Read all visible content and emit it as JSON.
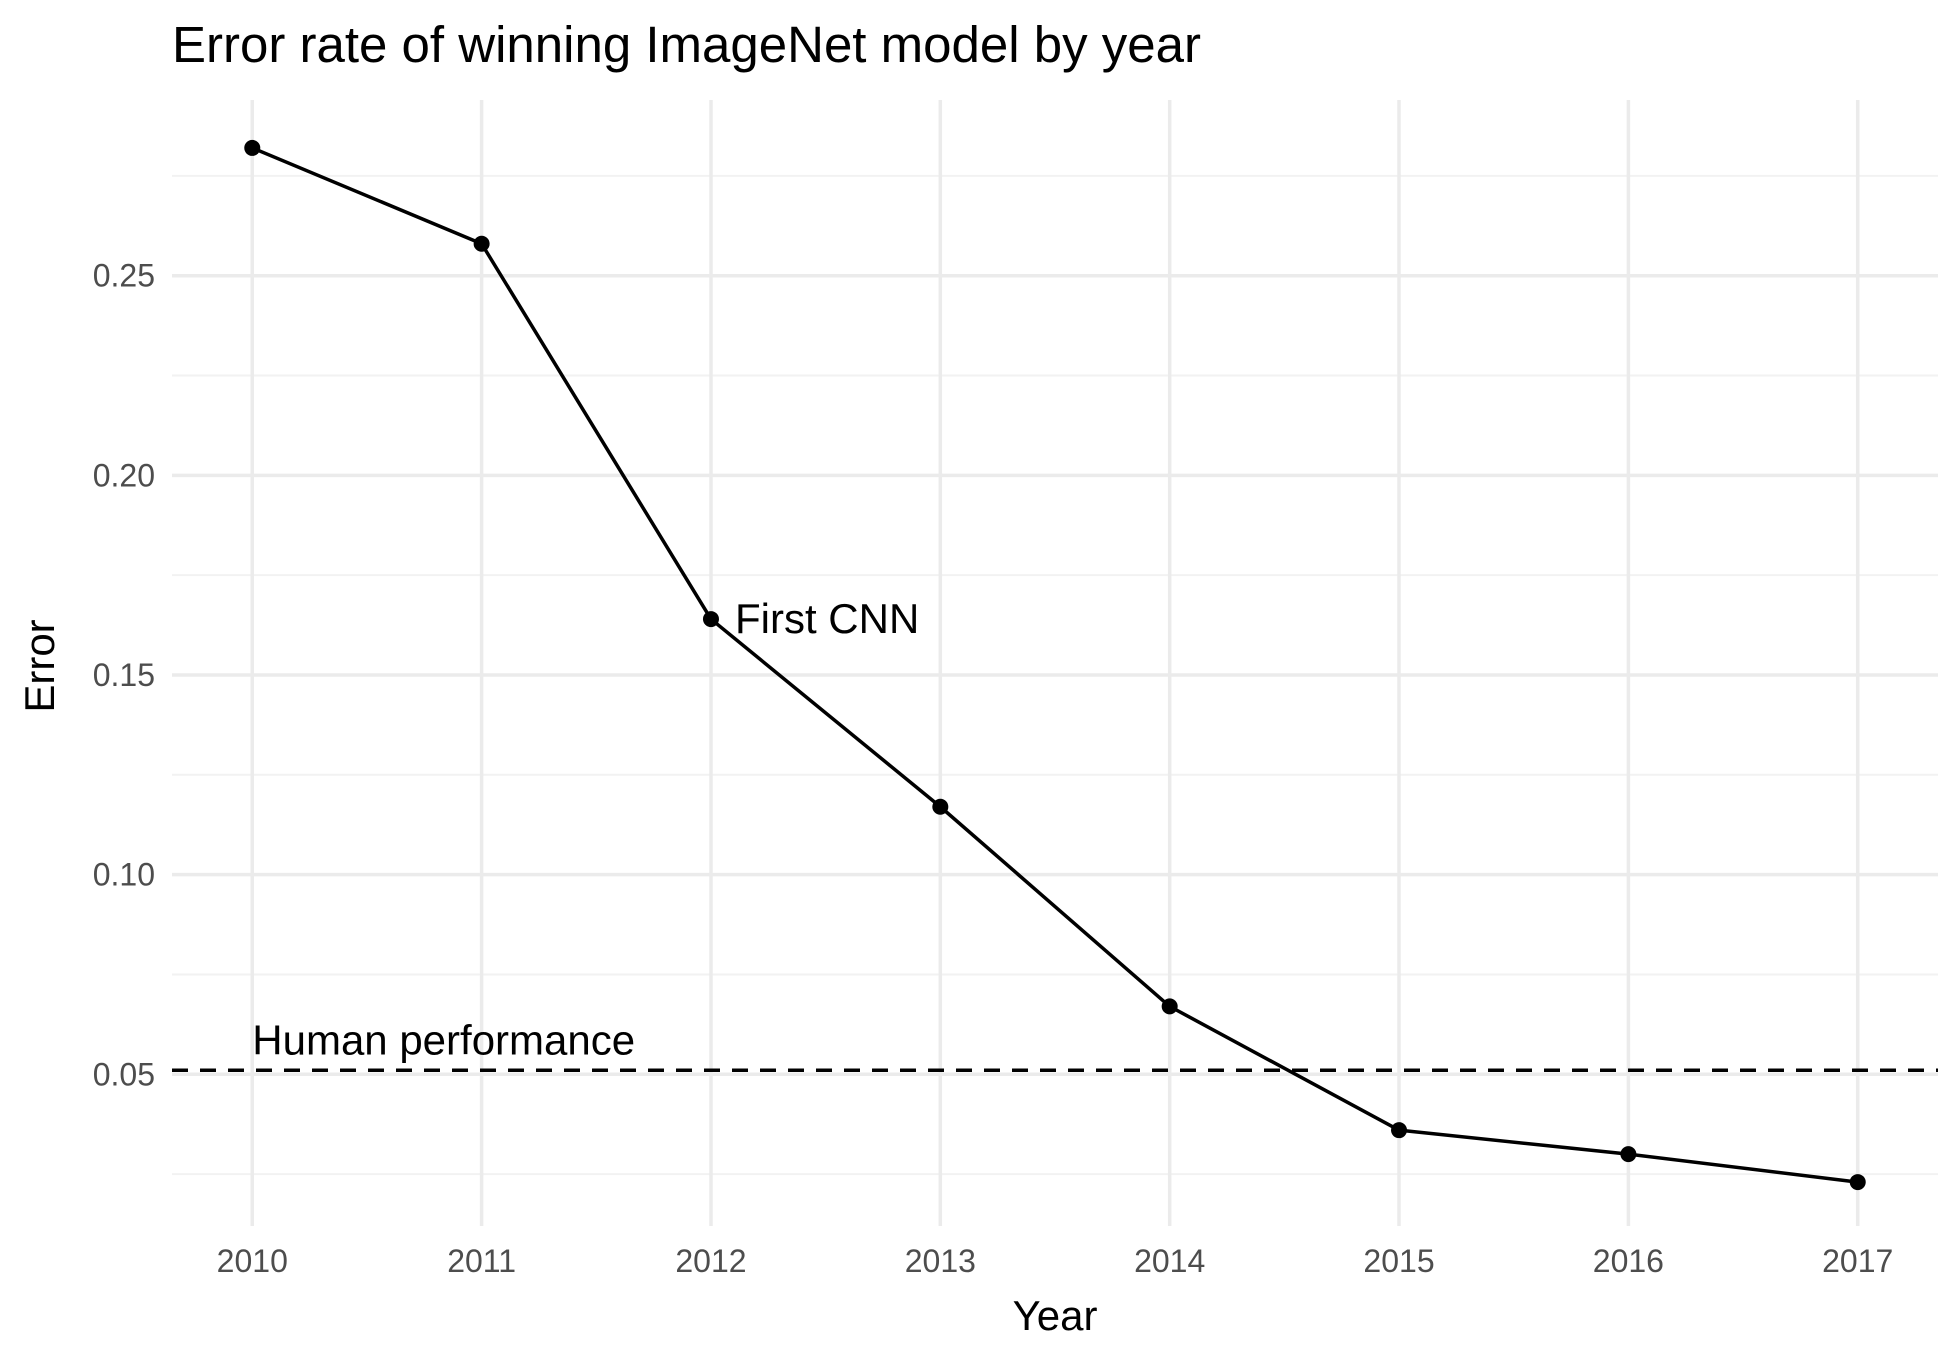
{
  "chart_data": {
    "type": "line",
    "title": "Error rate of winning ImageNet model by year",
    "xlabel": "Year",
    "ylabel": "Error",
    "x": [
      2010,
      2011,
      2012,
      2013,
      2014,
      2015,
      2016,
      2017
    ],
    "series": [
      {
        "values": [
          0.282,
          0.258,
          0.164,
          0.117,
          0.067,
          0.036,
          0.03,
          0.023
        ]
      }
    ],
    "xlim": [
      2009.65,
      2017.35
    ],
    "ylim": [
      0.012,
      0.294
    ],
    "x_ticks": [
      "2010",
      "2011",
      "2012",
      "2013",
      "2014",
      "2015",
      "2016",
      "2017"
    ],
    "y_ticks": [
      "0.05",
      "0.10",
      "0.15",
      "0.20",
      "0.25"
    ],
    "y_tick_values": [
      0.05,
      0.1,
      0.15,
      0.2,
      0.25
    ],
    "y_minor_values": [
      0.025,
      0.075,
      0.125,
      0.175,
      0.225,
      0.275
    ],
    "reference_line": {
      "y": 0.051,
      "style": "dashed",
      "label": "Human performance",
      "label_x": 2010
    },
    "point_annotations": [
      {
        "x": 2012,
        "y": 0.164,
        "text": "First CNN"
      }
    ],
    "grid": true,
    "legend": "none",
    "colors": {
      "line": "#000000",
      "point": "#000000",
      "grid_major": "#ebebeb",
      "grid_minor": "#f2f2f2",
      "tick_text": "#4d4d4d"
    }
  }
}
